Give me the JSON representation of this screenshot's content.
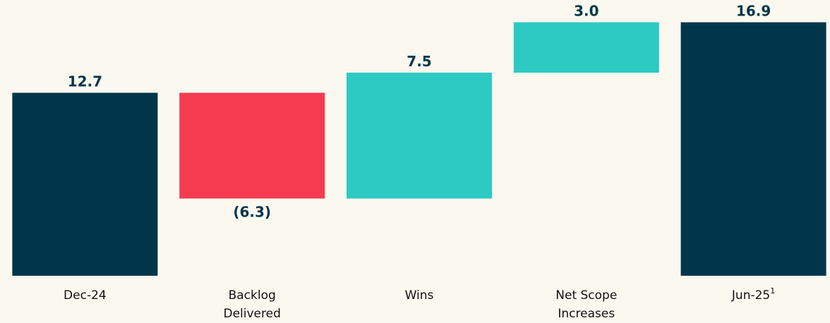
{
  "chart_data": {
    "type": "waterfall",
    "categories": [
      "Dec-24",
      "Backlog Delivered",
      "Wins",
      "Net Scope Increases",
      "Jun-25"
    ],
    "category_footnotes": [
      null,
      null,
      null,
      null,
      "1"
    ],
    "values": [
      12.7,
      -6.3,
      7.5,
      3.0,
      16.9
    ],
    "value_labels": [
      "12.7",
      "(6.3)",
      "7.5",
      "3.0",
      "16.9"
    ],
    "bar_kinds": [
      "total",
      "delta",
      "delta",
      "delta",
      "total"
    ],
    "colors": {
      "total": "#01364a",
      "increase": "#2ccac3",
      "decrease": "#f53b50"
    },
    "ylim": [
      1.8,
      18
    ]
  }
}
